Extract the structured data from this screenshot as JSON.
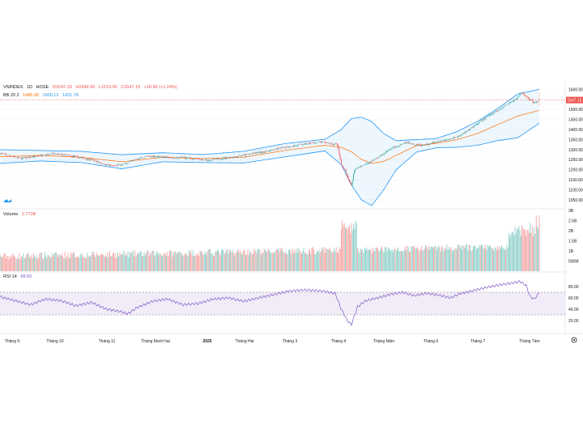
{
  "header": {
    "symbol": "VNINDEX",
    "interval": "1D",
    "exchange": "HOSE",
    "open": "O1547.19",
    "high": "H1584.90",
    "low": "L1519.00",
    "close": "C1547.15",
    "change": "+18.96 (+1.24%)",
    "bb_label": "BB 20 2",
    "bb_basis": "1495.90",
    "bb_upper": "1600.12",
    "bb_lower": "1431.79"
  },
  "volume_pane": {
    "label": "Volume",
    "value": "2.772B"
  },
  "rsi_pane": {
    "label": "RSI 14",
    "value": "68.60"
  },
  "price_tag": "1547.15",
  "colors": {
    "up": "#26a69a",
    "down": "#ef5350",
    "bb_band": "#2196f3",
    "bb_basis": "#ff6d00",
    "rsi_line": "#7e57c2",
    "rsi_fill": "#ede7f6"
  },
  "chart_data": [
    {
      "type": "candlestick",
      "x_ticks": [
        "Tháng 9",
        "Tháng 10",
        "Tháng 11",
        "Tháng Mười hai",
        "2025",
        "Tháng Hai",
        "Tháng 3",
        "Tháng 4",
        "Tháng Năm",
        "Tháng 6",
        "Tháng 7",
        "Tháng Tám"
      ],
      "y_ticks": [
        "1600.00",
        "1550.00",
        "1500.00",
        "1450.00",
        "1400.00",
        "1350.00",
        "1300.00",
        "1250.00",
        "1200.00",
        "1150.00",
        "1100.00",
        "1050.00"
      ],
      "ylim": [
        1030,
        1610
      ],
      "close_trace": [
        [
          0,
          1282
        ],
        [
          10,
          1270
        ],
        [
          20,
          1258
        ],
        [
          30,
          1262
        ],
        [
          40,
          1272
        ],
        [
          50,
          1280
        ],
        [
          60,
          1276
        ],
        [
          70,
          1268
        ],
        [
          80,
          1260
        ],
        [
          90,
          1250
        ],
        [
          100,
          1232
        ],
        [
          110,
          1218
        ],
        [
          120,
          1225
        ],
        [
          130,
          1245
        ],
        [
          140,
          1262
        ],
        [
          150,
          1268
        ],
        [
          160,
          1265
        ],
        [
          170,
          1258
        ],
        [
          180,
          1262
        ],
        [
          190,
          1255
        ],
        [
          200,
          1248
        ],
        [
          210,
          1250
        ],
        [
          220,
          1258
        ],
        [
          230,
          1265
        ],
        [
          240,
          1272
        ],
        [
          250,
          1282
        ],
        [
          260,
          1290
        ],
        [
          270,
          1300
        ],
        [
          280,
          1312
        ],
        [
          290,
          1320
        ],
        [
          300,
          1328
        ],
        [
          310,
          1335
        ],
        [
          318,
          1338
        ],
        [
          325,
          1330
        ],
        [
          332,
          1326
        ],
        [
          336,
          1225
        ],
        [
          340,
          1195
        ],
        [
          343,
          1150
        ],
        [
          346,
          1120
        ],
        [
          349,
          1200
        ],
        [
          352,
          1210
        ],
        [
          356,
          1220
        ],
        [
          360,
          1230
        ],
        [
          365,
          1240
        ],
        [
          370,
          1255
        ],
        [
          375,
          1270
        ],
        [
          380,
          1290
        ],
        [
          385,
          1305
        ],
        [
          390,
          1315
        ],
        [
          395,
          1328
        ],
        [
          400,
          1338
        ],
        [
          405,
          1332
        ],
        [
          410,
          1326
        ],
        [
          415,
          1320
        ],
        [
          420,
          1325
        ],
        [
          425,
          1332
        ],
        [
          430,
          1340
        ],
        [
          435,
          1345
        ],
        [
          440,
          1350
        ],
        [
          445,
          1356
        ],
        [
          450,
          1365
        ],
        [
          455,
          1378
        ],
        [
          460,
          1392
        ],
        [
          465,
          1410
        ],
        [
          470,
          1428
        ],
        [
          475,
          1448
        ],
        [
          480,
          1465
        ],
        [
          485,
          1480
        ],
        [
          490,
          1496
        ],
        [
          495,
          1512
        ],
        [
          500,
          1528
        ],
        [
          505,
          1545
        ],
        [
          510,
          1562
        ],
        [
          513,
          1585
        ],
        [
          516,
          1575
        ],
        [
          519,
          1560
        ],
        [
          522,
          1548
        ],
        [
          525,
          1535
        ],
        [
          528,
          1538
        ],
        [
          531,
          1547.15
        ]
      ],
      "bb_upper_trace": [
        [
          0,
          1300
        ],
        [
          40,
          1296
        ],
        [
          80,
          1292
        ],
        [
          120,
          1275
        ],
        [
          160,
          1285
        ],
        [
          200,
          1276
        ],
        [
          240,
          1292
        ],
        [
          280,
          1330
        ],
        [
          320,
          1352
        ],
        [
          336,
          1400
        ],
        [
          346,
          1455
        ],
        [
          356,
          1462
        ],
        [
          366,
          1440
        ],
        [
          378,
          1380
        ],
        [
          390,
          1345
        ],
        [
          410,
          1350
        ],
        [
          430,
          1356
        ],
        [
          450,
          1390
        ],
        [
          470,
          1440
        ],
        [
          490,
          1505
        ],
        [
          510,
          1578
        ],
        [
          531,
          1600.12
        ]
      ],
      "bb_basis_trace": [
        [
          0,
          1265
        ],
        [
          40,
          1272
        ],
        [
          80,
          1262
        ],
        [
          120,
          1240
        ],
        [
          160,
          1262
        ],
        [
          200,
          1256
        ],
        [
          240,
          1262
        ],
        [
          280,
          1296
        ],
        [
          320,
          1322
        ],
        [
          336,
          1312
        ],
        [
          346,
          1290
        ],
        [
          356,
          1252
        ],
        [
          366,
          1232
        ],
        [
          378,
          1242
        ],
        [
          390,
          1272
        ],
        [
          410,
          1320
        ],
        [
          430,
          1332
        ],
        [
          450,
          1350
        ],
        [
          470,
          1380
        ],
        [
          490,
          1425
        ],
        [
          510,
          1468
        ],
        [
          531,
          1495.9
        ]
      ],
      "bb_lower_trace": [
        [
          0,
          1232
        ],
        [
          40,
          1244
        ],
        [
          80,
          1236
        ],
        [
          120,
          1205
        ],
        [
          160,
          1240
        ],
        [
          200,
          1236
        ],
        [
          240,
          1234
        ],
        [
          280,
          1264
        ],
        [
          320,
          1294
        ],
        [
          336,
          1226
        ],
        [
          346,
          1125
        ],
        [
          356,
          1050
        ],
        [
          366,
          1022
        ],
        [
          378,
          1102
        ],
        [
          390,
          1200
        ],
        [
          410,
          1288
        ],
        [
          430,
          1310
        ],
        [
          450,
          1312
        ],
        [
          470,
          1322
        ],
        [
          490,
          1345
        ],
        [
          510,
          1360
        ],
        [
          531,
          1431.79
        ]
      ]
    },
    {
      "type": "bar",
      "name": "Volume",
      "y_ticks": [
        "3B",
        "2.5B",
        "2B",
        "1.5B",
        "1B",
        "500M"
      ],
      "ylim": [
        0,
        3
      ],
      "last_value": 2.772
    },
    {
      "type": "line",
      "name": "RSI 14",
      "y_ticks": [
        "80.00",
        "60.00",
        "40.00",
        "20.00"
      ],
      "ylim": [
        0,
        100
      ],
      "bands": [
        30,
        70
      ],
      "last_value": 68.6,
      "trace": [
        [
          0,
          62
        ],
        [
          15,
          55
        ],
        [
          30,
          48
        ],
        [
          45,
          58
        ],
        [
          60,
          55
        ],
        [
          75,
          46
        ],
        [
          90,
          52
        ],
        [
          105,
          40
        ],
        [
          118,
          36
        ],
        [
          126,
          32
        ],
        [
          134,
          42
        ],
        [
          150,
          54
        ],
        [
          165,
          58
        ],
        [
          180,
          48
        ],
        [
          195,
          50
        ],
        [
          210,
          58
        ],
        [
          225,
          60
        ],
        [
          240,
          54
        ],
        [
          255,
          60
        ],
        [
          270,
          66
        ],
        [
          285,
          72
        ],
        [
          300,
          74
        ],
        [
          318,
          72
        ],
        [
          330,
          68
        ],
        [
          336,
          40
        ],
        [
          342,
          20
        ],
        [
          346,
          13
        ],
        [
          352,
          44
        ],
        [
          360,
          55
        ],
        [
          372,
          60
        ],
        [
          384,
          66
        ],
        [
          396,
          70
        ],
        [
          408,
          64
        ],
        [
          420,
          68
        ],
        [
          432,
          65
        ],
        [
          444,
          60
        ],
        [
          452,
          67
        ],
        [
          464,
          72
        ],
        [
          478,
          78
        ],
        [
          492,
          83
        ],
        [
          504,
          86
        ],
        [
          512,
          89
        ],
        [
          518,
          82
        ],
        [
          522,
          62
        ],
        [
          526,
          58
        ],
        [
          531,
          68.6
        ]
      ]
    }
  ]
}
